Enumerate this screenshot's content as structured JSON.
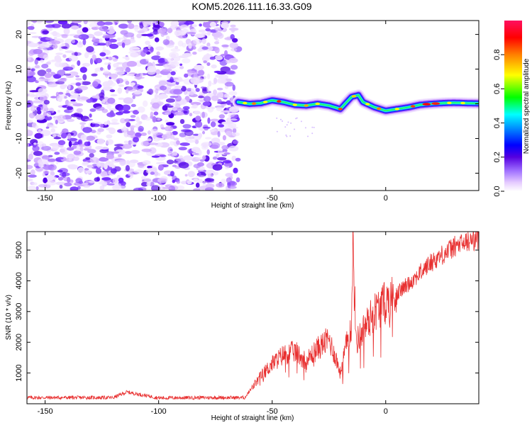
{
  "title": "KOM5.2026.111.16.33.G09",
  "chart_data": [
    {
      "type": "heatmap",
      "name": "spectrogram",
      "xlabel": "Height of straight line (km)",
      "ylabel": "Frequency (Hz)",
      "xlim": [
        -158,
        41
      ],
      "ylim": [
        -25,
        24
      ],
      "xticks": [
        -150,
        -100,
        -50,
        0
      ],
      "yticks": [
        -20,
        -10,
        0,
        10,
        20
      ],
      "noise_region_x": [
        -158,
        -65
      ],
      "signal_trace": {
        "x": [
          -65,
          -60,
          -55,
          -50,
          -45,
          -40,
          -35,
          -30,
          -25,
          -20,
          -15,
          -12,
          -10,
          -5,
          0,
          5,
          10,
          15,
          20,
          25,
          30,
          35,
          41
        ],
        "frequency": [
          0.5,
          0.0,
          0.2,
          1.0,
          0.5,
          -0.3,
          -0.5,
          0.0,
          -0.5,
          -1.5,
          2.0,
          2.5,
          0.5,
          -1.0,
          -2.0,
          -1.5,
          -1.0,
          -0.3,
          0.0,
          0.2,
          0.3,
          0.2,
          0.1
        ]
      },
      "colorbar": {
        "label": "Normalized spectral amplitude",
        "range": [
          0,
          1
        ],
        "ticks": [
          "0.0",
          "0.2",
          "0.4",
          "0.6",
          "0.8"
        ],
        "tick_values": [
          0.0,
          0.2,
          0.4,
          0.6,
          0.8
        ],
        "colors": [
          "#ffffff",
          "#e6ccff",
          "#a070ff",
          "#5500e0",
          "#0000ff",
          "#0080ff",
          "#00ffff",
          "#00ff00",
          "#ffff00",
          "#ff8000",
          "#ff0000",
          "#ff1060"
        ]
      }
    },
    {
      "type": "line",
      "name": "snr",
      "xlabel": "Height of straight line (km)",
      "ylabel": "SNR (10 * v/v)",
      "xlim": [
        -158,
        41
      ],
      "ylim": [
        0,
        5600
      ],
      "xticks": [
        -150,
        -100,
        -50,
        0
      ],
      "yticks": [
        1000,
        2000,
        3000,
        4000,
        5000
      ],
      "color": "#e83030",
      "key_points": {
        "x": [
          -158,
          -120,
          -114,
          -100,
          -80,
          -62,
          -58,
          -55,
          -50,
          -45,
          -40,
          -35,
          -30,
          -25,
          -22,
          -20,
          -18,
          -15,
          -14.5,
          -13,
          -10,
          -5,
          0,
          10,
          20,
          30,
          41
        ],
        "y": [
          200,
          200,
          380,
          190,
          200,
          200,
          600,
          900,
          1300,
          1600,
          1700,
          1400,
          1800,
          2100,
          1500,
          1000,
          1700,
          2600,
          5150,
          2000,
          2400,
          3000,
          3300,
          3900,
          4600,
          5100,
          5400
        ]
      }
    }
  ]
}
